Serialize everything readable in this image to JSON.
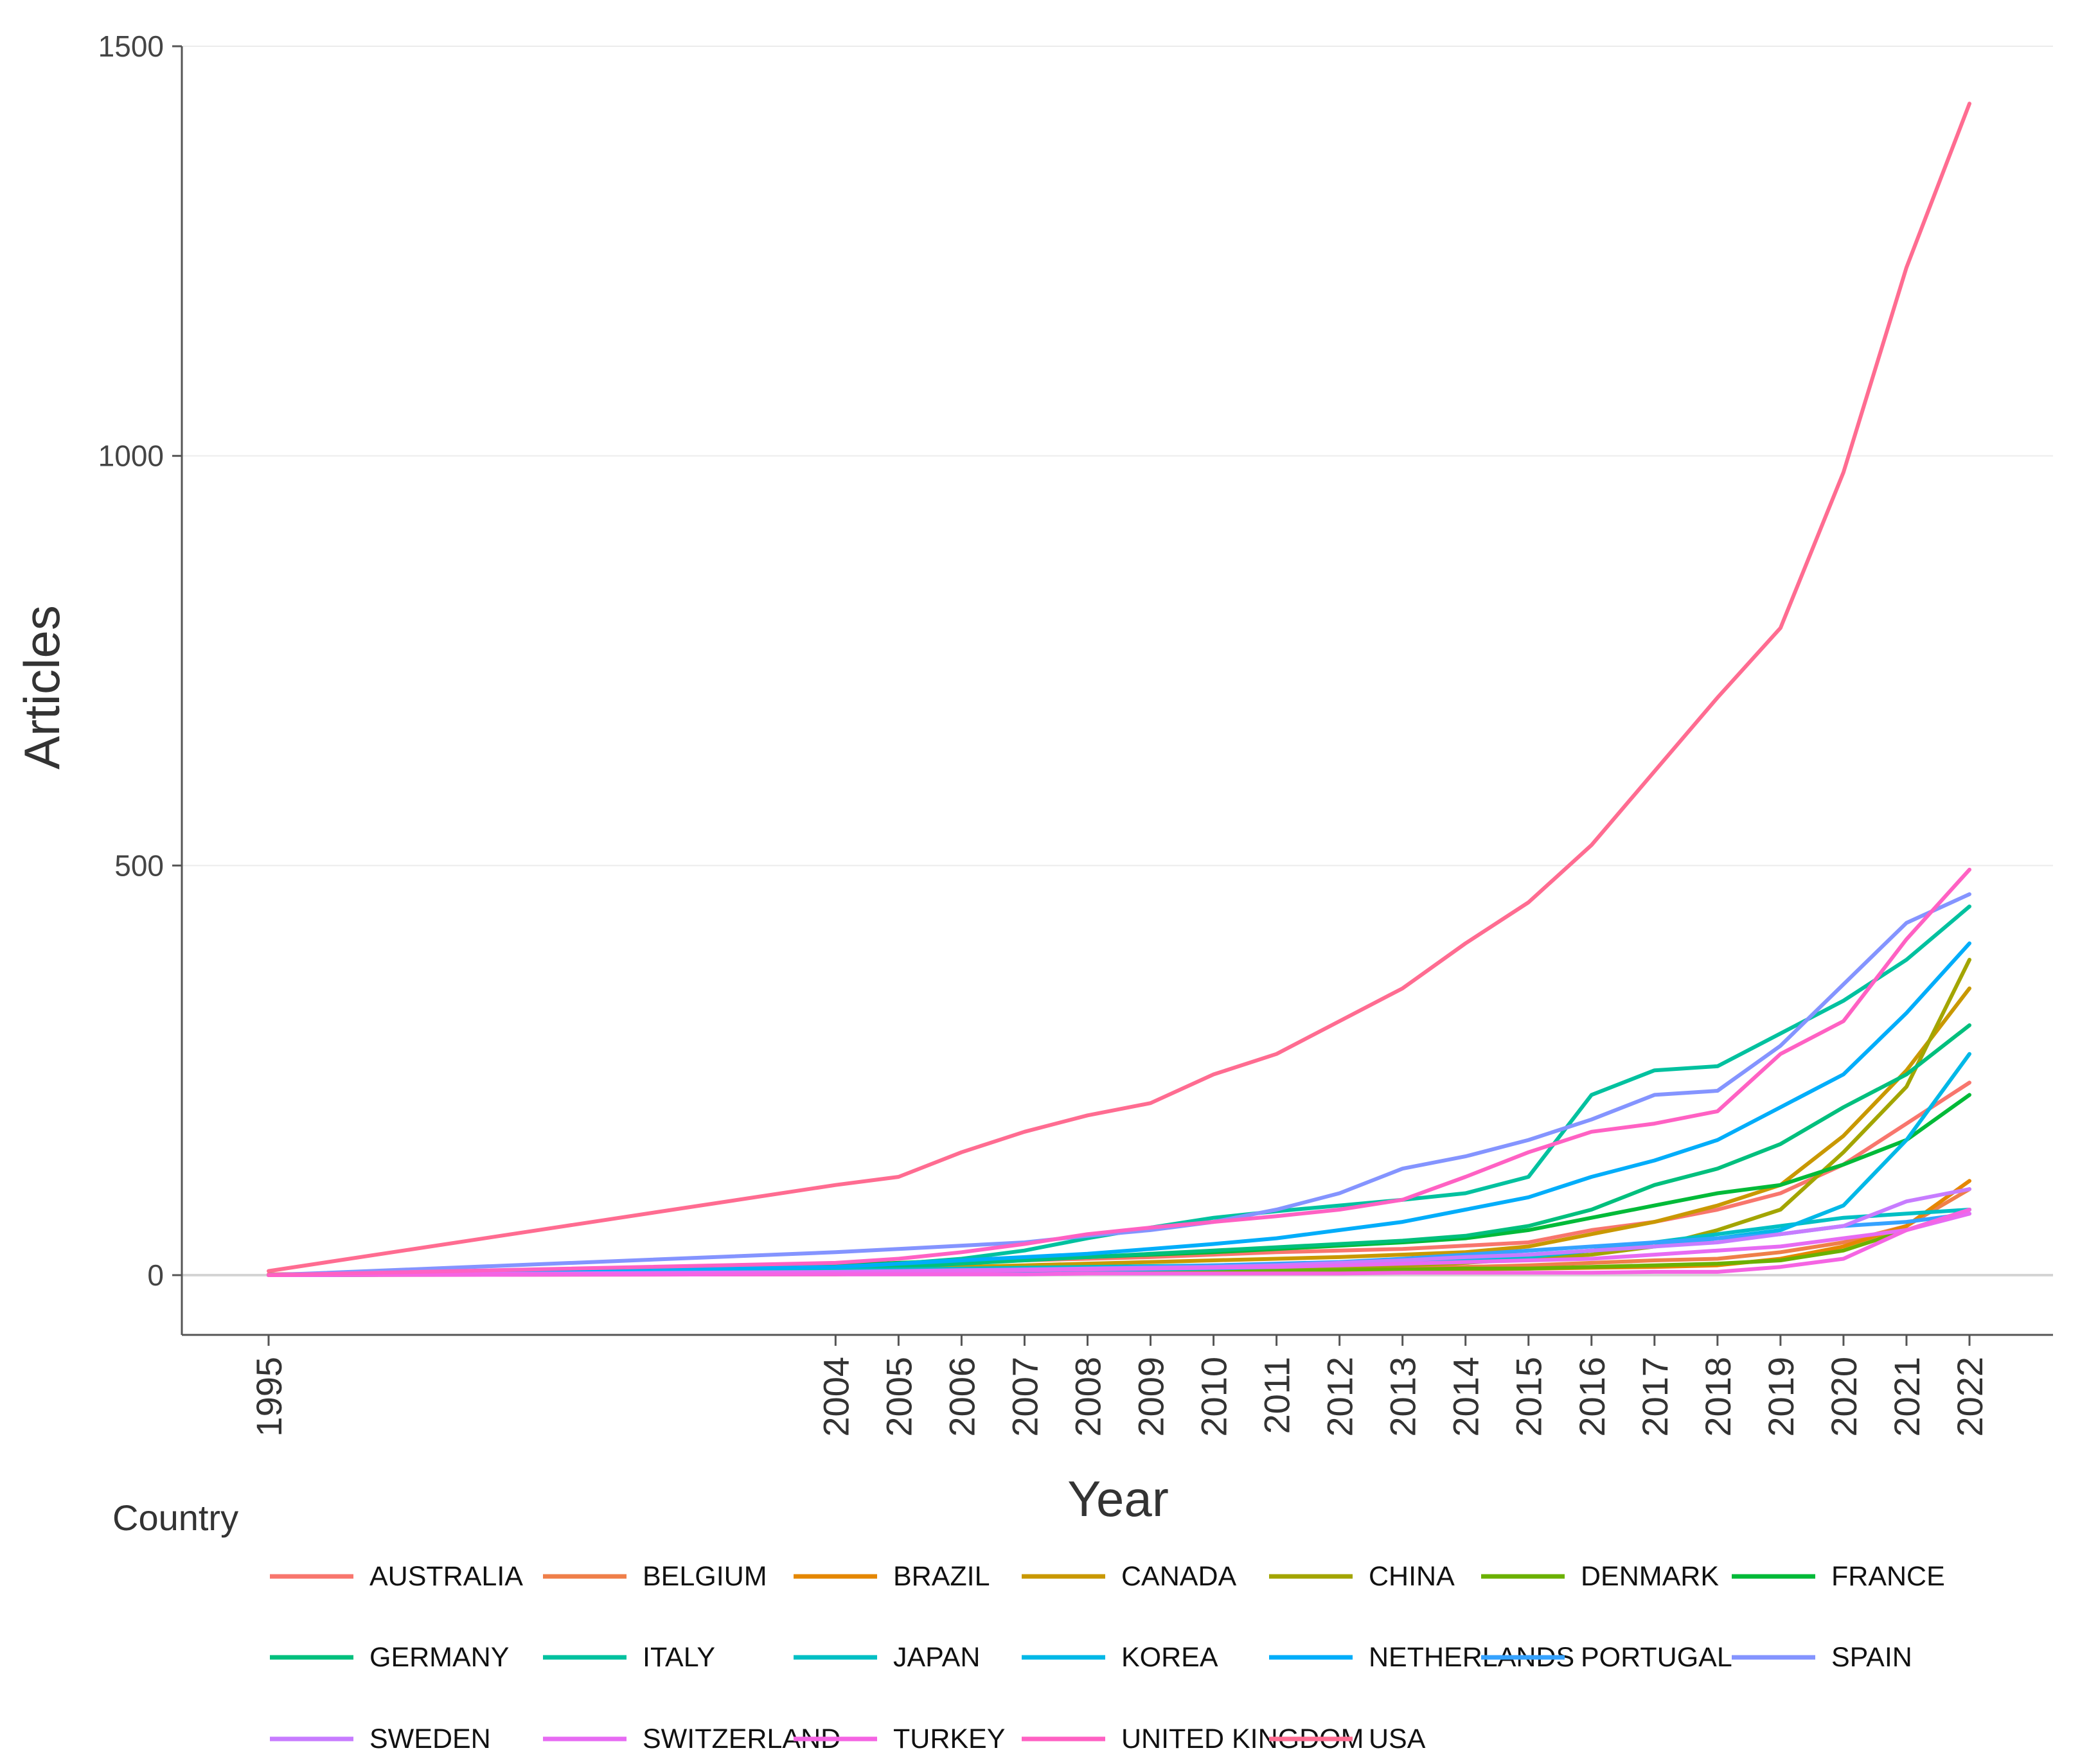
{
  "chart_data": {
    "type": "line",
    "title": "",
    "xlabel": "Year",
    "ylabel": "Articles",
    "ylim": [
      -70,
      1500
    ],
    "yticks": [
      0,
      500,
      1000,
      1500
    ],
    "x": [
      1995,
      2004,
      2005,
      2006,
      2007,
      2008,
      2009,
      2010,
      2011,
      2012,
      2013,
      2014,
      2015,
      2016,
      2017,
      2018,
      2019,
      2020,
      2021,
      2022
    ],
    "legend_title": "Country",
    "legend_position": "bottom",
    "series": [
      {
        "name": "AUSTRALIA",
        "color": "#F8766D",
        "values": [
          1,
          8,
          12,
          15,
          18,
          20,
          22,
          25,
          28,
          30,
          32,
          36,
          40,
          55,
          65,
          80,
          100,
          135,
          185,
          235
        ]
      },
      {
        "name": "BELGIUM",
        "color": "#EF7F49",
        "values": [
          0,
          2,
          3,
          3,
          4,
          5,
          5,
          6,
          7,
          8,
          9,
          10,
          12,
          15,
          18,
          20,
          28,
          40,
          60,
          105
        ]
      },
      {
        "name": "BRAZIL",
        "color": "#E58700",
        "values": [
          0,
          1,
          2,
          2,
          3,
          3,
          4,
          4,
          5,
          5,
          6,
          7,
          8,
          9,
          10,
          12,
          20,
          35,
          60,
          115
        ]
      },
      {
        "name": "CANADA",
        "color": "#C99800",
        "values": [
          0,
          6,
          8,
          10,
          12,
          14,
          16,
          18,
          20,
          22,
          25,
          28,
          35,
          50,
          65,
          85,
          110,
          170,
          250,
          350
        ]
      },
      {
        "name": "CHINA",
        "color": "#A3A500",
        "values": [
          0,
          2,
          2,
          3,
          4,
          5,
          6,
          8,
          9,
          10,
          12,
          15,
          20,
          25,
          35,
          55,
          80,
          150,
          230,
          385
        ]
      },
      {
        "name": "DENMARK",
        "color": "#6BB100",
        "values": [
          0,
          2,
          2,
          3,
          3,
          4,
          4,
          5,
          5,
          6,
          7,
          8,
          8,
          10,
          12,
          14,
          18,
          30,
          55,
          80
        ]
      },
      {
        "name": "FRANCE",
        "color": "#00BA38",
        "values": [
          0,
          12,
          15,
          18,
          20,
          22,
          25,
          28,
          32,
          36,
          40,
          45,
          55,
          70,
          85,
          100,
          110,
          135,
          165,
          220
        ]
      },
      {
        "name": "GERMANY",
        "color": "#00BF7D",
        "values": [
          0,
          8,
          10,
          14,
          18,
          22,
          26,
          30,
          34,
          38,
          42,
          48,
          60,
          80,
          110,
          130,
          160,
          205,
          245,
          305
        ]
      },
      {
        "name": "ITALY",
        "color": "#00C19F",
        "values": [
          0,
          8,
          14,
          20,
          30,
          45,
          58,
          70,
          78,
          85,
          92,
          100,
          120,
          220,
          250,
          255,
          295,
          335,
          385,
          450
        ]
      },
      {
        "name": "JAPAN",
        "color": "#00BFC4",
        "values": [
          0,
          6,
          7,
          8,
          9,
          10,
          11,
          12,
          13,
          14,
          16,
          18,
          22,
          30,
          40,
          50,
          60,
          70,
          75,
          80
        ]
      },
      {
        "name": "KOREA",
        "color": "#00B8E7",
        "values": [
          0,
          2,
          3,
          4,
          5,
          6,
          7,
          8,
          10,
          12,
          15,
          20,
          25,
          30,
          35,
          45,
          55,
          85,
          165,
          270
        ]
      },
      {
        "name": "NETHERLANDS",
        "color": "#00ADFA",
        "values": [
          0,
          10,
          14,
          18,
          22,
          26,
          32,
          38,
          45,
          55,
          65,
          80,
          95,
          120,
          140,
          165,
          205,
          245,
          320,
          405
        ]
      },
      {
        "name": "PORTUGAL",
        "color": "#35A2FF",
        "values": [
          0,
          3,
          4,
          5,
          6,
          8,
          10,
          12,
          14,
          16,
          20,
          25,
          30,
          35,
          40,
          45,
          50,
          60,
          65,
          75
        ]
      },
      {
        "name": "SPAIN",
        "color": "#8494FF",
        "values": [
          0,
          28,
          32,
          36,
          40,
          48,
          55,
          65,
          80,
          100,
          130,
          145,
          165,
          190,
          220,
          225,
          280,
          355,
          430,
          465
        ]
      },
      {
        "name": "SWEDEN",
        "color": "#C77CFF",
        "values": [
          0,
          4,
          5,
          6,
          7,
          8,
          9,
          10,
          12,
          15,
          18,
          22,
          25,
          30,
          35,
          40,
          50,
          60,
          90,
          105
        ]
      },
      {
        "name": "SWITZERLAND",
        "color": "#E76BF3",
        "values": [
          0,
          3,
          4,
          5,
          6,
          7,
          8,
          9,
          10,
          12,
          14,
          16,
          18,
          20,
          25,
          30,
          35,
          45,
          55,
          75
        ]
      },
      {
        "name": "TURKEY",
        "color": "#F564E3",
        "values": [
          0,
          1,
          1,
          1,
          1,
          2,
          2,
          2,
          2,
          2,
          3,
          3,
          3,
          3,
          4,
          4,
          10,
          20,
          55,
          80
        ]
      },
      {
        "name": "UNITED KINGDOM",
        "color": "#FF61C3",
        "values": [
          0,
          15,
          20,
          28,
          38,
          50,
          58,
          65,
          72,
          80,
          92,
          120,
          150,
          175,
          185,
          200,
          270,
          310,
          410,
          495
        ]
      },
      {
        "name": "USA",
        "color": "#FF6C91",
        "values": [
          5,
          110,
          120,
          150,
          175,
          195,
          210,
          245,
          270,
          310,
          350,
          405,
          455,
          525,
          615,
          705,
          790,
          980,
          1230,
          1430
        ]
      }
    ]
  }
}
